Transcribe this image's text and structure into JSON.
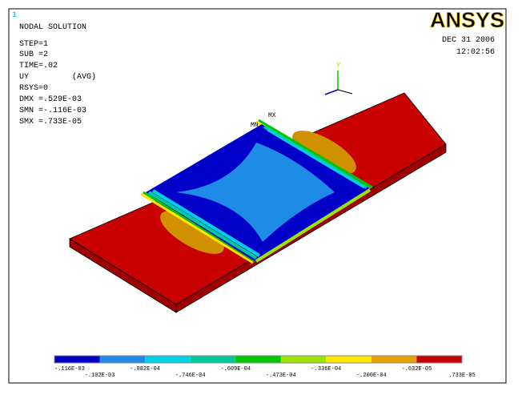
{
  "window_number": "1",
  "info": {
    "title": "NODAL SOLUTION",
    "step": "STEP=1",
    "sub": "SUB =2",
    "time": "TIME=.02",
    "quantity": "UY",
    "averaging": "(AVG)",
    "rsys": "RSYS=0",
    "dmx": "DMX =.529E-03",
    "smn": "SMN =-.116E-03",
    "smx": "SMX =.733E-05"
  },
  "logo": "ANSYS",
  "date": "DEC 31 2006",
  "clock": "12:02:56",
  "markers": {
    "max": "MX",
    "min": "MN"
  },
  "axis": "Y",
  "legend": {
    "colors": [
      "#0000c8",
      "#1e8ce6",
      "#00d2e6",
      "#00c89b",
      "#00c800",
      "#9be600",
      "#ffe600",
      "#e6a000",
      "#c80000"
    ],
    "labels": [
      "-.116E-03",
      "-.102E-03",
      "-.882E-04",
      "-.746E-04",
      "-.609E-04",
      "-.473E-04",
      "-.336E-04",
      "-.200E-04",
      "-.632E-05",
      ".733E-05"
    ]
  }
}
